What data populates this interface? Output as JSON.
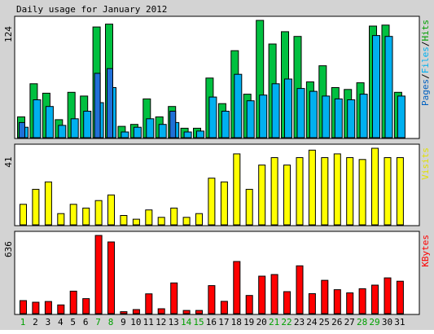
{
  "colors": {
    "background": "#d3d3d3",
    "panel": "#ffffff",
    "frame": "#000000",
    "weekday_label": "#000000",
    "weekend_label": "#00a000"
  },
  "chart_data": {
    "type": "bar",
    "title": "Daily usage for January 2012",
    "categories": [
      "1",
      "2",
      "3",
      "4",
      "5",
      "6",
      "7",
      "8",
      "9",
      "10",
      "11",
      "12",
      "13",
      "14",
      "15",
      "16",
      "17",
      "18",
      "19",
      "20",
      "21",
      "22",
      "23",
      "24",
      "25",
      "26",
      "27",
      "28",
      "29",
      "30",
      "31"
    ],
    "weekend_days": [
      "1",
      "7",
      "8",
      "14",
      "15",
      "21",
      "22",
      "28",
      "29"
    ],
    "panels": [
      {
        "name": "hits-files-pages",
        "max_label": "124",
        "ymax": 124,
        "legend": [
          {
            "text": "Pages",
            "color": "#0060c0"
          },
          {
            "text": "/",
            "color": "#000000"
          },
          {
            "text": "Files",
            "color": "#00b0f0"
          },
          {
            "text": "/",
            "color": "#000000"
          },
          {
            "text": "Hits",
            "color": "#00a000"
          }
        ],
        "series": [
          {
            "name": "Hits",
            "color": "#00c040",
            "values": [
              22,
              57,
              47,
              19,
              48,
              44,
              117,
              120,
              12,
              14,
              41,
              22,
              33,
              10,
              10,
              63,
              36,
              92,
              46,
              124,
              99,
              112,
              107,
              59,
              76,
              53,
              51,
              58,
              118,
              119,
              48
            ]
          },
          {
            "name": "Files",
            "color": "#00b0f0",
            "values": [
              11,
              40,
              33,
              13,
              20,
              28,
              37,
              53,
              6,
              11,
              20,
              14,
              16,
              6,
              7,
              43,
              28,
              67,
              39,
              45,
              57,
              62,
              52,
              49,
              44,
              41,
              40,
              46,
              108,
              107,
              44
            ]
          },
          {
            "name": "Pages",
            "color": "#2070d8",
            "values": [
              16,
              0,
              0,
              0,
              0,
              0,
              68,
              73,
              0,
              0,
              0,
              0,
              28,
              0,
              0,
              0,
              0,
              0,
              0,
              0,
              0,
              0,
              0,
              0,
              0,
              0,
              0,
              0,
              0,
              0,
              0
            ]
          }
        ]
      },
      {
        "name": "visits",
        "max_label": "41",
        "ymax": 41,
        "legend": [
          {
            "text": "Visits",
            "color": "#e0e000"
          }
        ],
        "series": [
          {
            "name": "Visits",
            "color": "#ffff00",
            "values": [
              11,
              19,
              23,
              6,
              11,
              9,
              13,
              16,
              5,
              3,
              8,
              4,
              9,
              4,
              6,
              25,
              23,
              38,
              19,
              32,
              36,
              32,
              36,
              40,
              36,
              38,
              36,
              35,
              41,
              36,
              36
            ]
          }
        ]
      },
      {
        "name": "kbytes",
        "max_label": "636",
        "ymax": 636,
        "legend": [
          {
            "text": "KBytes",
            "color": "#ff0000"
          }
        ],
        "series": [
          {
            "name": "KBytes",
            "color": "#ff0000",
            "values": [
              106,
              93,
              99,
              71,
              183,
              122,
              636,
              583,
              16,
              33,
              161,
              40,
              250,
              26,
              26,
              228,
              100,
              424,
              148,
              305,
              318,
              179,
              389,
              162,
              271,
              195,
              169,
              203,
              232,
              291,
              264
            ]
          }
        ]
      }
    ]
  }
}
